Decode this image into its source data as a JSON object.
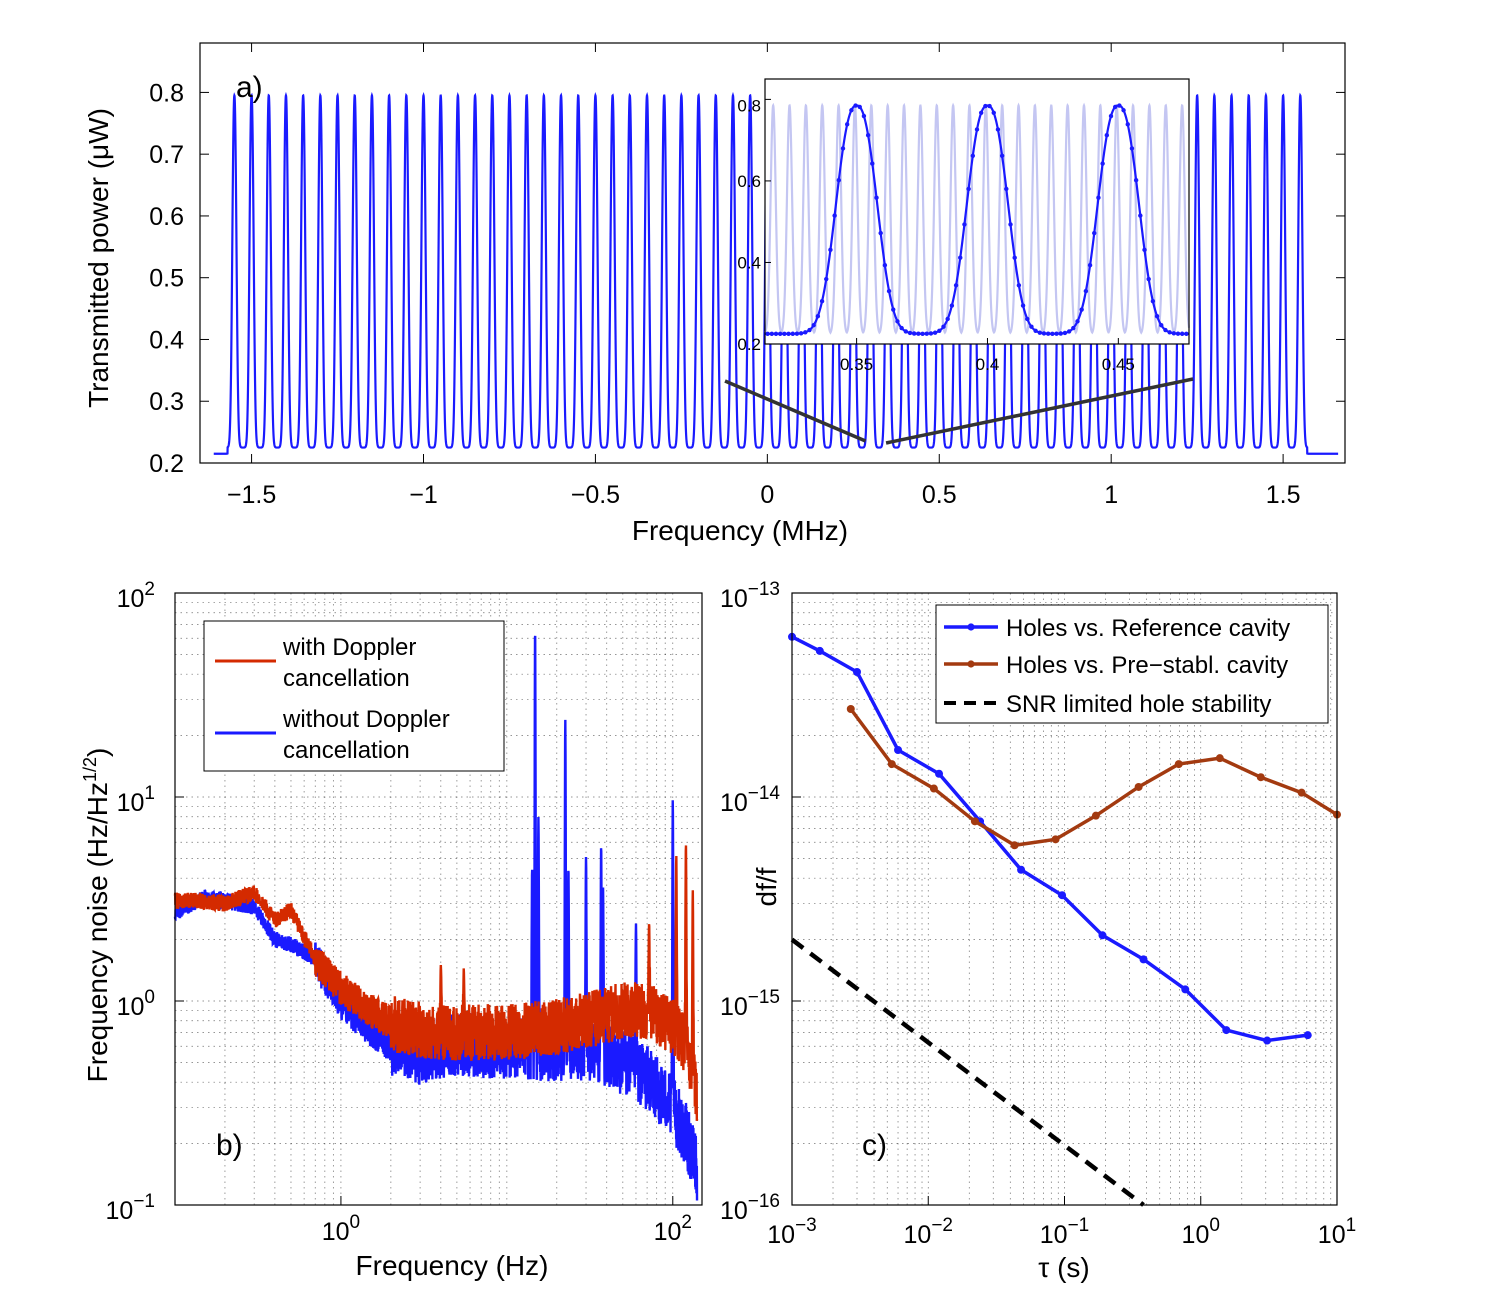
{
  "colors": {
    "blue": "#1a1aff",
    "red": "#d42a00",
    "brown": "#a33a10",
    "inset_bg_line": "#c4c6f2",
    "black": "#000000",
    "zoom_line": "#333333"
  },
  "chart_data": [
    {
      "id": "a",
      "type": "line",
      "panel_label": "a)",
      "title": "",
      "xlabel": "Frequency (MHz)",
      "ylabel": "Transmitted power (μW)",
      "xlim": [
        -1.65,
        1.68
      ],
      "ylim": [
        0.2,
        0.88
      ],
      "x_ticks": [
        -1.5,
        -1,
        -0.5,
        0,
        0.5,
        1,
        1.5
      ],
      "x_tick_labels": [
        "−1.5",
        "−1",
        "−0.5",
        "0",
        "0.5",
        "1",
        "1.5"
      ],
      "y_ticks": [
        0.2,
        0.3,
        0.4,
        0.5,
        0.6,
        0.7,
        0.8
      ],
      "y_tick_labels": [
        "0.2",
        "0.3",
        "0.4",
        "0.5",
        "0.6",
        "0.7",
        "0.8"
      ],
      "series": [
        {
          "name": "transmission comb",
          "color": "blue",
          "peak_spacing_mhz": 0.05,
          "first_peak_mhz": -1.55,
          "last_peak_mhz": 1.55,
          "peak_max": 0.795,
          "baseline": 0.225,
          "outer_baseline": 0.215
        }
      ],
      "inset": {
        "xlim": [
          0.315,
          0.477
        ],
        "ylim": [
          0.2,
          0.85
        ],
        "x_ticks": [
          0.35,
          0.4,
          0.45
        ],
        "x_tick_labels": [
          "0.35",
          "0.4",
          "0.45"
        ],
        "y_ticks": [
          0.2,
          0.4,
          0.6,
          0.8
        ],
        "y_tick_labels": [
          "0.2",
          "0.4",
          "0.6",
          "0.8"
        ],
        "peaks_mhz": [
          0.35,
          0.4,
          0.45
        ],
        "peak_max": 0.785,
        "baseline": 0.225,
        "background_peak_spacing_mhz": 0.00625,
        "zoom_source_mhz": [
          0.3,
          0.45
        ]
      }
    },
    {
      "id": "b",
      "type": "line",
      "panel_label": "b)",
      "title": "",
      "xscale": "log",
      "yscale": "log",
      "xlabel": "Frequency (Hz)",
      "ylabel": "Frequency noise (Hz/Hz",
      "ylabel_sup": "1/2",
      "ylabel_end": ")",
      "xlim": [
        0.1,
        150
      ],
      "ylim": [
        0.1,
        100
      ],
      "x_ticks": [
        1,
        100
      ],
      "x_tick_labels": [
        {
          "base": "10",
          "exp": "0"
        },
        {
          "base": "10",
          "exp": "2"
        }
      ],
      "y_ticks": [
        0.1,
        1,
        10,
        100
      ],
      "y_tick_labels": [
        {
          "base": "10",
          "exp": "−1"
        },
        {
          "base": "10",
          "exp": "0"
        },
        {
          "base": "10",
          "exp": "1"
        },
        {
          "base": "10",
          "exp": "2"
        }
      ],
      "legend": {
        "placement": "top-left",
        "entries": [
          {
            "line1": "with Doppler",
            "line2": "cancellation",
            "color": "red"
          },
          {
            "line1": "without Doppler",
            "line2": "cancellation",
            "color": "blue"
          }
        ]
      },
      "series": [
        {
          "name": "without Doppler cancellation",
          "color": "blue",
          "envelope_x": [
            0.1,
            0.15,
            0.2,
            0.3,
            0.4,
            0.5,
            0.7,
            1,
            1.5,
            2,
            3,
            5,
            7,
            10,
            20,
            30,
            50,
            70,
            100,
            120,
            140
          ],
          "envelope_y": [
            2.7,
            3.2,
            3.1,
            2.9,
            2.0,
            1.9,
            1.6,
            1.0,
            0.75,
            0.62,
            0.56,
            0.62,
            0.6,
            0.6,
            0.58,
            0.58,
            0.5,
            0.42,
            0.3,
            0.22,
            0.15
          ],
          "peaks": [
            {
              "x": 14.8,
              "y": 68
            },
            {
              "x": 15.5,
              "y": 8
            },
            {
              "x": 14.2,
              "y": 4.5
            },
            {
              "x": 22.5,
              "y": 24
            },
            {
              "x": 23.5,
              "y": 4.5
            },
            {
              "x": 30,
              "y": 5.1
            },
            {
              "x": 37,
              "y": 5.8
            },
            {
              "x": 38,
              "y": 3.6
            },
            {
              "x": 100,
              "y": 9.8
            },
            {
              "x": 60,
              "y": 2.4
            }
          ]
        },
        {
          "name": "with Doppler cancellation",
          "color": "red",
          "envelope_x": [
            0.1,
            0.15,
            0.2,
            0.3,
            0.4,
            0.5,
            0.7,
            1,
            1.5,
            2,
            3,
            5,
            7,
            10,
            20,
            30,
            50,
            70,
            100,
            120,
            140
          ],
          "envelope_y": [
            3.1,
            3.1,
            3.0,
            3.4,
            2.5,
            2.8,
            1.6,
            1.15,
            0.9,
            0.78,
            0.72,
            0.7,
            0.7,
            0.7,
            0.75,
            0.8,
            0.9,
            0.9,
            0.75,
            0.6,
            0.35
          ],
          "peaks": [
            {
              "x": 72,
              "y": 2.4
            },
            {
              "x": 105,
              "y": 5.2
            },
            {
              "x": 120,
              "y": 5.9
            },
            {
              "x": 132,
              "y": 3.5
            },
            {
              "x": 4.0,
              "y": 1.5
            },
            {
              "x": 5.5,
              "y": 1.45
            }
          ]
        }
      ]
    },
    {
      "id": "c",
      "type": "line",
      "panel_label": "c)",
      "title": "",
      "xscale": "log",
      "yscale": "log",
      "xlabel": "τ (s)",
      "ylabel": "df/f",
      "xlim": [
        0.001,
        10
      ],
      "ylim": [
        1e-16,
        1e-13
      ],
      "x_ticks": [
        0.001,
        0.01,
        0.1,
        1,
        10
      ],
      "x_tick_labels": [
        {
          "base": "10",
          "exp": "−3"
        },
        {
          "base": "10",
          "exp": "−2"
        },
        {
          "base": "10",
          "exp": "−1"
        },
        {
          "base": "10",
          "exp": "0"
        },
        {
          "base": "10",
          "exp": "1"
        }
      ],
      "y_ticks": [
        1e-16,
        1e-15,
        1e-14,
        1e-13
      ],
      "y_tick_labels": [
        {
          "base": "10",
          "exp": "−16"
        },
        {
          "base": "10",
          "exp": "−15"
        },
        {
          "base": "10",
          "exp": "−14"
        },
        {
          "base": "10",
          "exp": "−13"
        }
      ],
      "legend": {
        "placement": "top-right",
        "entries": [
          {
            "label": "Holes vs. Reference cavity",
            "color": "blue",
            "style": "solid-marker"
          },
          {
            "label": "Holes vs. Pre−stabl. cavity",
            "color": "brown",
            "style": "solid-marker"
          },
          {
            "label": "SNR limited hole stability",
            "color": "black",
            "style": "dashed"
          }
        ]
      },
      "series": [
        {
          "name": "Holes vs. Reference cavity",
          "color": "blue",
          "x": [
            0.001,
            0.0016,
            0.003,
            0.006,
            0.012,
            0.024,
            0.048,
            0.096,
            0.19,
            0.38,
            0.77,
            1.54,
            3.07,
            6.1
          ],
          "y": [
            6.1e-14,
            5.2e-14,
            4.1e-14,
            1.7e-14,
            1.3e-14,
            7.6e-15,
            4.4e-15,
            3.3e-15,
            2.1e-15,
            1.6e-15,
            1.14e-15,
            7.2e-16,
            6.4e-16,
            6.8e-16
          ]
        },
        {
          "name": "Holes vs. Pre−stabl. cavity",
          "color": "brown",
          "x": [
            0.0027,
            0.0054,
            0.011,
            0.022,
            0.043,
            0.086,
            0.17,
            0.35,
            0.69,
            1.38,
            2.76,
            5.5,
            10
          ],
          "y": [
            2.7e-14,
            1.45e-14,
            1.1e-14,
            7.6e-15,
            5.8e-15,
            6.2e-15,
            8.1e-15,
            1.12e-14,
            1.45e-14,
            1.55e-14,
            1.25e-14,
            1.05e-14,
            8.2e-15
          ]
        },
        {
          "name": "SNR limited hole stability",
          "color": "black",
          "dashed": true,
          "x": [
            0.001,
            0.38
          ],
          "y": [
            2e-15,
            1e-16
          ]
        }
      ]
    }
  ]
}
